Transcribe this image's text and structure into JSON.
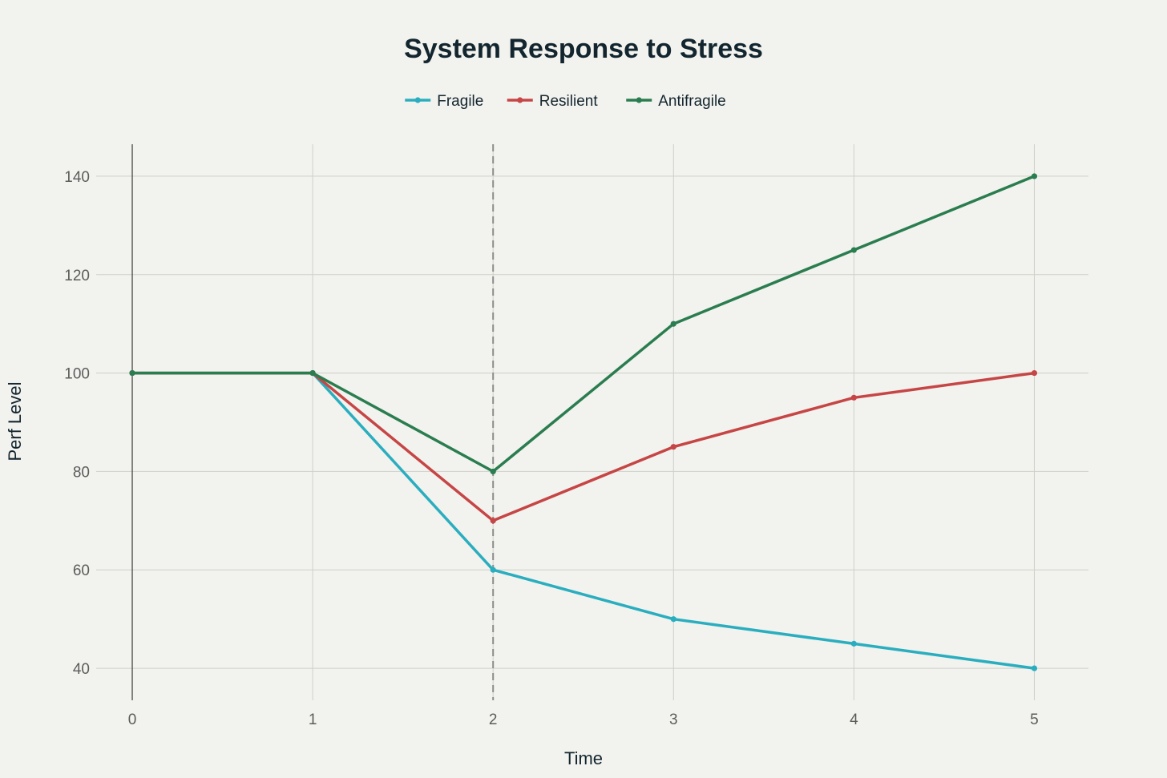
{
  "chart_data": {
    "type": "line",
    "title": "System Response to Stress",
    "xlabel": "Time",
    "ylabel": "Perf Level",
    "x": [
      0,
      1,
      2,
      3,
      4,
      5
    ],
    "xlim": [
      -0.2,
      5.3
    ],
    "ylim": [
      33.5,
      146.5
    ],
    "xticks": [
      0,
      1,
      2,
      3,
      4,
      5
    ],
    "yticks": [
      40,
      60,
      80,
      100,
      120,
      140
    ],
    "grid": true,
    "legend_position": "top-center",
    "stress_marker_x": 2,
    "series": [
      {
        "name": "Fragile",
        "color": "#2aaebf",
        "values": [
          100,
          100,
          60,
          50,
          45,
          40
        ]
      },
      {
        "name": "Resilient",
        "color": "#c64545",
        "values": [
          100,
          100,
          70,
          85,
          95,
          100
        ]
      },
      {
        "name": "Antifragile",
        "color": "#2a7d4f",
        "values": [
          100,
          100,
          80,
          110,
          125,
          140
        ]
      }
    ]
  }
}
